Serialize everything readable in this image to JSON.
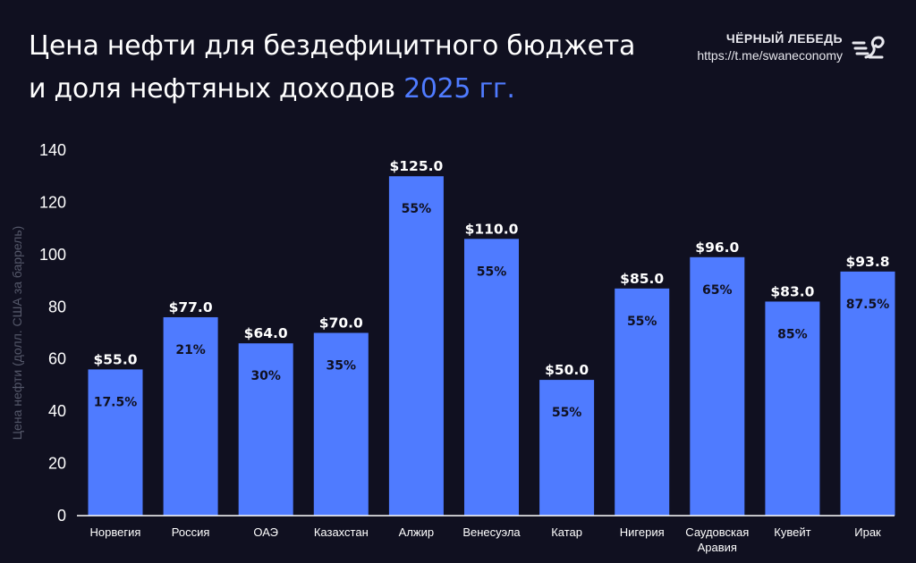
{
  "header": {
    "title_line1": "Цена нефти для бездефицитного бюджета",
    "title_line2": "и доля нефтяных доходов",
    "title_accent": "2025 гг."
  },
  "brand": {
    "name": "ЧЁРНЫЙ ЛЕБЕДЬ",
    "url": "https://t.me/swaneconomy",
    "logo_icon": "swan-logo-icon"
  },
  "colors": {
    "background": "#101020",
    "bar": "#4f7bff",
    "accent": "#4f7bff"
  },
  "chart_data": {
    "type": "bar",
    "title": "Цена нефти для бездефицитного бюджета и доля нефтяных доходов 2025 гг.",
    "xlabel": "",
    "ylabel": "Цена нефти (долл. США за баррель)",
    "ylim": [
      0,
      140
    ],
    "yticks": [
      0,
      20,
      40,
      60,
      80,
      100,
      120,
      140
    ],
    "grid": false,
    "legend": "none",
    "categories": [
      "Норвегия",
      "Россия",
      "ОАЭ",
      "Казахстан",
      "Алжир",
      "Венесуэла",
      "Катар",
      "Нигерия",
      "Саудовская Аравия",
      "Кувейт",
      "Ирак"
    ],
    "category_lines": [
      [
        "Норвегия"
      ],
      [
        "Россия"
      ],
      [
        "ОАЭ"
      ],
      [
        "Казахстан"
      ],
      [
        "Алжир"
      ],
      [
        "Венесуэла"
      ],
      [
        "Катар"
      ],
      [
        "Нигерия"
      ],
      [
        "Саудовская",
        "Аравия"
      ],
      [
        "Кувейт"
      ],
      [
        "Ирак"
      ]
    ],
    "values": [
      55.0,
      77.0,
      64.0,
      70.0,
      125.0,
      110.0,
      50.0,
      85.0,
      96.0,
      83.0,
      93.8
    ],
    "bar_heights": [
      56,
      76,
      66,
      70,
      130,
      106,
      52,
      87,
      99,
      82,
      93.5
    ],
    "value_labels": [
      "$55.0",
      "$77.0",
      "$64.0",
      "$70.0",
      "$125.0",
      "$110.0",
      "$50.0",
      "$85.0",
      "$96.0",
      "$83.0",
      "$93.8"
    ],
    "share_labels": [
      "17.5%",
      "21%",
      "30%",
      "35%",
      "55%",
      "55%",
      "55%",
      "55%",
      "65%",
      "85%",
      "87.5%"
    ]
  }
}
